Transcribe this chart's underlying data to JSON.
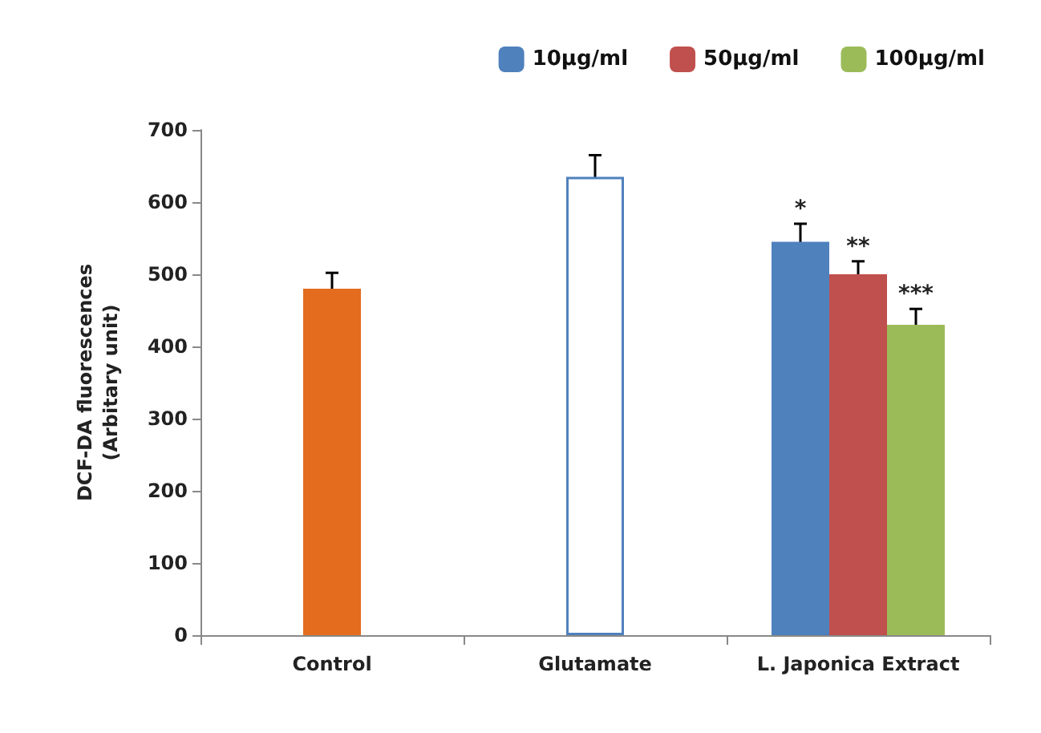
{
  "chart_data": {
    "type": "bar",
    "ylabel": "DCF-DA fluorescences\n(Arbitary unit)",
    "categories": [
      "Control",
      "Glutamate",
      "L. Japonica Extract"
    ],
    "series": [
      {
        "colors": [
          "#e36c1e",
          "#ffffff",
          null
        ],
        "values": [
          480,
          635,
          null
        ],
        "errors": [
          22,
          30,
          null
        ]
      },
      {
        "name": "10µg/ml",
        "color": "#4f81bd",
        "values": [
          null,
          null,
          545
        ],
        "errors": [
          null,
          null,
          25
        ]
      },
      {
        "name": "50µg/ml",
        "color": "#c0504d",
        "values": [
          null,
          null,
          500
        ],
        "errors": [
          null,
          null,
          18
        ]
      },
      {
        "name": "100µg/ml",
        "color": "#9bbb59",
        "values": [
          null,
          null,
          430
        ],
        "errors": [
          null,
          null,
          22
        ]
      }
    ],
    "annotations": [
      "*",
      "**",
      "***"
    ],
    "ylim": [
      0,
      700
    ],
    "yticks": [
      0,
      100,
      200,
      300,
      400,
      500,
      600,
      700
    ],
    "grid": false,
    "legend": "top right"
  }
}
